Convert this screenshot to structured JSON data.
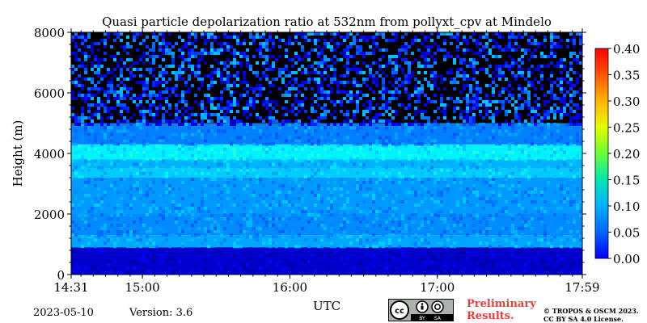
{
  "chart_data": {
    "type": "heatmap",
    "title": "Quasi particle depolarization ratio at 532nm from pollyxt_cpv at Mindelo",
    "xlabel": "UTC",
    "ylabel": "Height (m)",
    "x_range": [
      "14:31",
      "17:59"
    ],
    "x_ticks": [
      "14:31",
      "15:00",
      "16:00",
      "17:00",
      "17:59"
    ],
    "ylim": [
      0,
      8000
    ],
    "y_ticks": [
      "0",
      "2000",
      "4000",
      "6000",
      "8000"
    ],
    "colorbar": {
      "min": 0.0,
      "max": 0.4,
      "ticks": [
        "0.00",
        "0.05",
        "0.10",
        "0.15",
        "0.20",
        "0.25",
        "0.30",
        "0.35",
        "0.40"
      ],
      "colormap": "jet"
    },
    "layers": [
      {
        "height_from": 0,
        "height_to": 900,
        "value": 0.03
      },
      {
        "height_from": 900,
        "height_to": 1300,
        "value": 0.115
      },
      {
        "height_from": 1300,
        "height_to": 2000,
        "value": 0.105
      },
      {
        "height_from": 2000,
        "height_to": 3200,
        "value": 0.11
      },
      {
        "height_from": 3200,
        "height_to": 3500,
        "value": 0.13
      },
      {
        "height_from": 3500,
        "height_to": 3800,
        "value": 0.12
      },
      {
        "height_from": 3800,
        "height_to": 4300,
        "value": 0.145
      },
      {
        "height_from": 4300,
        "height_to": 5000,
        "value": 0.1
      },
      {
        "height_from": 5000,
        "height_to": 8000,
        "value": 0.07,
        "note": "noisy, sparse"
      }
    ]
  },
  "footer": {
    "date": "2023-05-10",
    "version": "Version: 3.6",
    "preliminary_line1": "Preliminary",
    "preliminary_line2": "Results.",
    "copyright_line1": "© TROPOS & OSCM 2023.",
    "copyright_line2": "CC BY SA 4.0 License.",
    "cc_by": "BY",
    "cc_sa": "SA"
  }
}
